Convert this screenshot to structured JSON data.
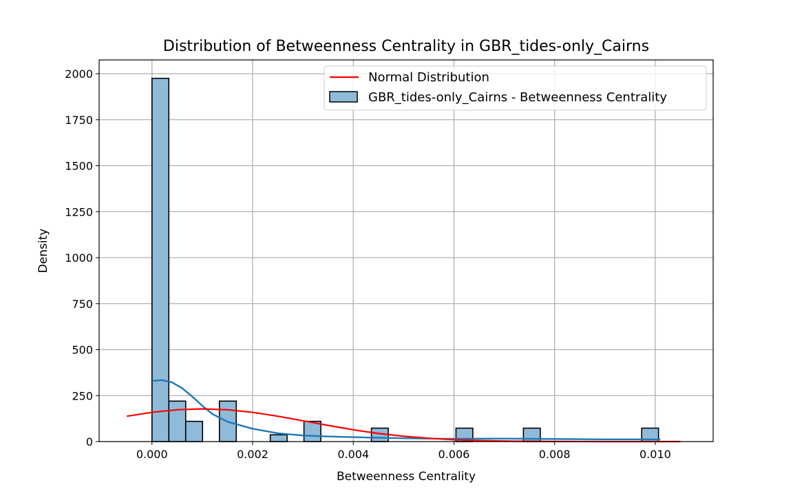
{
  "chart_data": {
    "type": "bar",
    "title": "Distribution of Betweenness Centrality in GBR_tides-only_Cairns",
    "xlabel": "Betweenness Centrality",
    "ylabel": "Density",
    "xlim": [
      -0.00105,
      0.01115
    ],
    "ylim": [
      0,
      2075
    ],
    "x_ticks": [
      0.0,
      0.002,
      0.004,
      0.006,
      0.008,
      0.01
    ],
    "x_tick_labels": [
      "0.000",
      "0.002",
      "0.004",
      "0.006",
      "0.008",
      "0.010"
    ],
    "y_ticks": [
      0,
      250,
      500,
      750,
      1000,
      1250,
      1500,
      1750,
      2000
    ],
    "y_tick_labels": [
      "0",
      "250",
      "500",
      "750",
      "1000",
      "1250",
      "1500",
      "1750",
      "2000"
    ],
    "grid": true,
    "legend_position": "top-right",
    "histogram": {
      "name": "GBR_tides-only_Cairns - Betweenness Centrality",
      "color": "#8fbbd9",
      "edge_color": "#000000",
      "bin_width": 0.000335,
      "bins": [
        {
          "x0": 0.0,
          "value": 1975
        },
        {
          "x0": 0.000335,
          "value": 220
        },
        {
          "x0": 0.00067,
          "value": 110
        },
        {
          "x0": 0.00134,
          "value": 220
        },
        {
          "x0": 0.00235,
          "value": 37
        },
        {
          "x0": 0.00302,
          "value": 110
        },
        {
          "x0": 0.00436,
          "value": 73
        },
        {
          "x0": 0.00604,
          "value": 73
        },
        {
          "x0": 0.00738,
          "value": 73
        },
        {
          "x0": 0.00973,
          "value": 73
        }
      ]
    },
    "kde": {
      "color": "#1f77b4",
      "x": [
        0.0,
        0.0002,
        0.0004,
        0.0006,
        0.0008,
        0.001,
        0.0012,
        0.0015,
        0.002,
        0.0025,
        0.003,
        0.0035,
        0.004,
        0.0045,
        0.005,
        0.0055,
        0.006,
        0.007,
        0.008,
        0.009,
        0.01,
        0.0101
      ],
      "y": [
        330,
        334,
        322,
        290,
        245,
        195,
        150,
        108,
        70,
        45,
        33,
        28,
        24,
        21,
        18,
        16,
        15,
        16,
        14,
        12,
        12,
        12
      ]
    },
    "normal": {
      "name": "Normal Distribution",
      "color": "#ff0000",
      "x": [
        -0.0005,
        0.0,
        0.0005,
        0.001,
        0.0015,
        0.002,
        0.0025,
        0.003,
        0.0035,
        0.004,
        0.0045,
        0.005,
        0.0055,
        0.006,
        0.0065,
        0.007,
        0.0075,
        0.008,
        0.0085,
        0.009,
        0.0095,
        0.01,
        0.0105
      ],
      "y": [
        138,
        159,
        173,
        178,
        173,
        159,
        138,
        113,
        88,
        64,
        44,
        29,
        18,
        10,
        5.4,
        2.7,
        1.3,
        0.6,
        0.25,
        0.1,
        0.04,
        0.01,
        0.0
      ]
    }
  }
}
